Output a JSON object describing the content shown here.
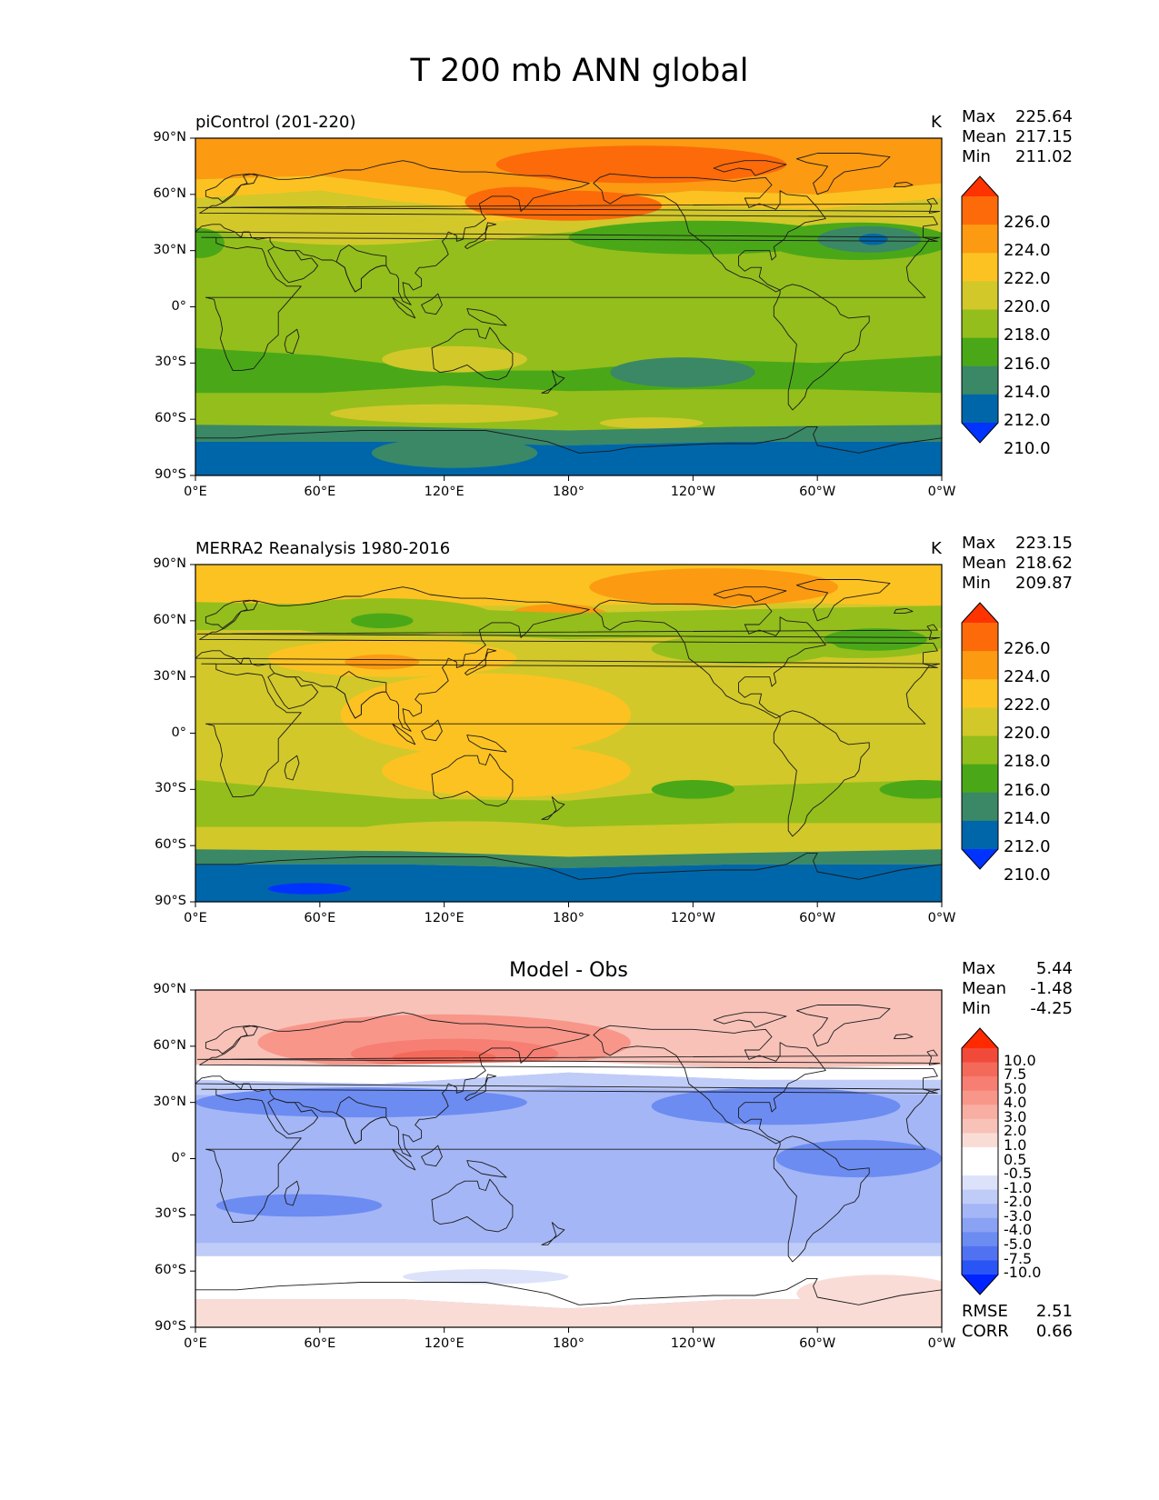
{
  "figure": {
    "title": "T 200 mb ANN global"
  },
  "colors": {
    "abs": [
      "#0033ff",
      "#0066aa",
      "#3a8866",
      "#4aa818",
      "#94be1c",
      "#d2c82a",
      "#fcc222",
      "#fc9a12",
      "#fc6a0a",
      "#ff3300"
    ],
    "diff": [
      "#0024ff",
      "#2a55f6",
      "#5072f2",
      "#6c8cf2",
      "#8aa2f4",
      "#a4b6f6",
      "#c0ccf8",
      "#dce2fa",
      "#ffffff",
      "#ffffff",
      "#fadcd6",
      "#f8c2b8",
      "#f8aea2",
      "#f8968a",
      "#f67e72",
      "#f46a5a",
      "#f24a3a",
      "#ff2a00"
    ]
  },
  "axes": {
    "yticks": [
      "90°N",
      "60°N",
      "30°N",
      "0°",
      "30°S",
      "60°S",
      "90°S"
    ],
    "xticks": [
      "0°E",
      "60°E",
      "120°E",
      "180°",
      "120°W",
      "60°W",
      "0°W"
    ]
  },
  "panels": [
    {
      "title_left": "piControl (201-220)",
      "title_center": "",
      "units": "K",
      "stats": [
        {
          "label": "Max",
          "value": "225.64"
        },
        {
          "label": "Mean",
          "value": "217.15"
        },
        {
          "label": "Min",
          "value": "211.02"
        }
      ],
      "colorbar_labels": [
        "226.0",
        "224.0",
        "222.0",
        "220.0",
        "218.0",
        "216.0",
        "214.0",
        "212.0",
        "210.0"
      ]
    },
    {
      "title_left": "MERRA2 Reanalysis 1980-2016",
      "title_center": "",
      "units": "K",
      "stats": [
        {
          "label": "Max",
          "value": "223.15"
        },
        {
          "label": "Mean",
          "value": "218.62"
        },
        {
          "label": "Min",
          "value": "209.87"
        }
      ],
      "colorbar_labels": [
        "226.0",
        "224.0",
        "222.0",
        "220.0",
        "218.0",
        "216.0",
        "214.0",
        "212.0",
        "210.0"
      ]
    },
    {
      "title_left": "",
      "title_center": "Model - Obs",
      "units": "",
      "stats": [
        {
          "label": "Max",
          "value": "5.44"
        },
        {
          "label": "Mean",
          "value": "-1.48"
        },
        {
          "label": "Min",
          "value": "-4.25"
        }
      ],
      "colorbar_labels": [
        "10.0",
        "7.5",
        "5.0",
        "4.0",
        "3.0",
        "2.0",
        "1.0",
        "0.5",
        "-0.5",
        "-1.0",
        "-2.0",
        "-3.0",
        "-4.0",
        "-5.0",
        "-7.5",
        "-10.0"
      ],
      "metrics": [
        {
          "label": "RMSE",
          "value": "2.51"
        },
        {
          "label": "CORR",
          "value": "0.66"
        }
      ]
    }
  ],
  "chart_data": [
    {
      "type": "heatmap",
      "title": "piControl (201-220)",
      "units": "K",
      "xlim": [
        0,
        360
      ],
      "ylim": [
        -90,
        90
      ],
      "levels": [
        210,
        212,
        214,
        216,
        218,
        220,
        222,
        224,
        226
      ],
      "extend": "both",
      "zonal_mean_by_lat": [
        {
          "lat": 80,
          "value": 223
        },
        {
          "lat": 65,
          "value": 221
        },
        {
          "lat": 45,
          "value": 218
        },
        {
          "lat": 30,
          "value": 216
        },
        {
          "lat": 0,
          "value": 217
        },
        {
          "lat": -30,
          "value": 215
        },
        {
          "lat": -55,
          "value": 217
        },
        {
          "lat": -70,
          "value": 213
        },
        {
          "lat": -85,
          "value": 212
        }
      ],
      "stats": {
        "max": 225.64,
        "mean": 217.15,
        "min": 211.02
      }
    },
    {
      "type": "heatmap",
      "title": "MERRA2 Reanalysis 1980-2016",
      "units": "K",
      "xlim": [
        0,
        360
      ],
      "ylim": [
        -90,
        90
      ],
      "levels": [
        210,
        212,
        214,
        216,
        218,
        220,
        222,
        224,
        226
      ],
      "extend": "both",
      "zonal_mean_by_lat": [
        {
          "lat": 80,
          "value": 221
        },
        {
          "lat": 60,
          "value": 217
        },
        {
          "lat": 30,
          "value": 219
        },
        {
          "lat": 0,
          "value": 219
        },
        {
          "lat": -30,
          "value": 217
        },
        {
          "lat": -55,
          "value": 218
        },
        {
          "lat": -70,
          "value": 213
        },
        {
          "lat": -85,
          "value": 211
        }
      ],
      "stats": {
        "max": 223.15,
        "mean": 218.62,
        "min": 209.87
      }
    },
    {
      "type": "heatmap",
      "title": "Model - Obs",
      "units": "",
      "xlim": [
        0,
        360
      ],
      "ylim": [
        -90,
        90
      ],
      "levels": [
        -10,
        -7.5,
        -5,
        -4,
        -3,
        -2,
        -1,
        -0.5,
        0.5,
        1,
        2,
        3,
        4,
        5,
        7.5,
        10
      ],
      "extend": "both",
      "zonal_mean_by_lat": [
        {
          "lat": 80,
          "value": 2
        },
        {
          "lat": 60,
          "value": 3
        },
        {
          "lat": 40,
          "value": -0.3
        },
        {
          "lat": 30,
          "value": -2.5
        },
        {
          "lat": 0,
          "value": -2
        },
        {
          "lat": -30,
          "value": -2
        },
        {
          "lat": -45,
          "value": -1
        },
        {
          "lat": -60,
          "value": 0
        },
        {
          "lat": -80,
          "value": 1.5
        }
      ],
      "stats": {
        "max": 5.44,
        "mean": -1.48,
        "min": -4.25
      },
      "metrics": {
        "rmse": 2.51,
        "corr": 0.66
      }
    }
  ]
}
